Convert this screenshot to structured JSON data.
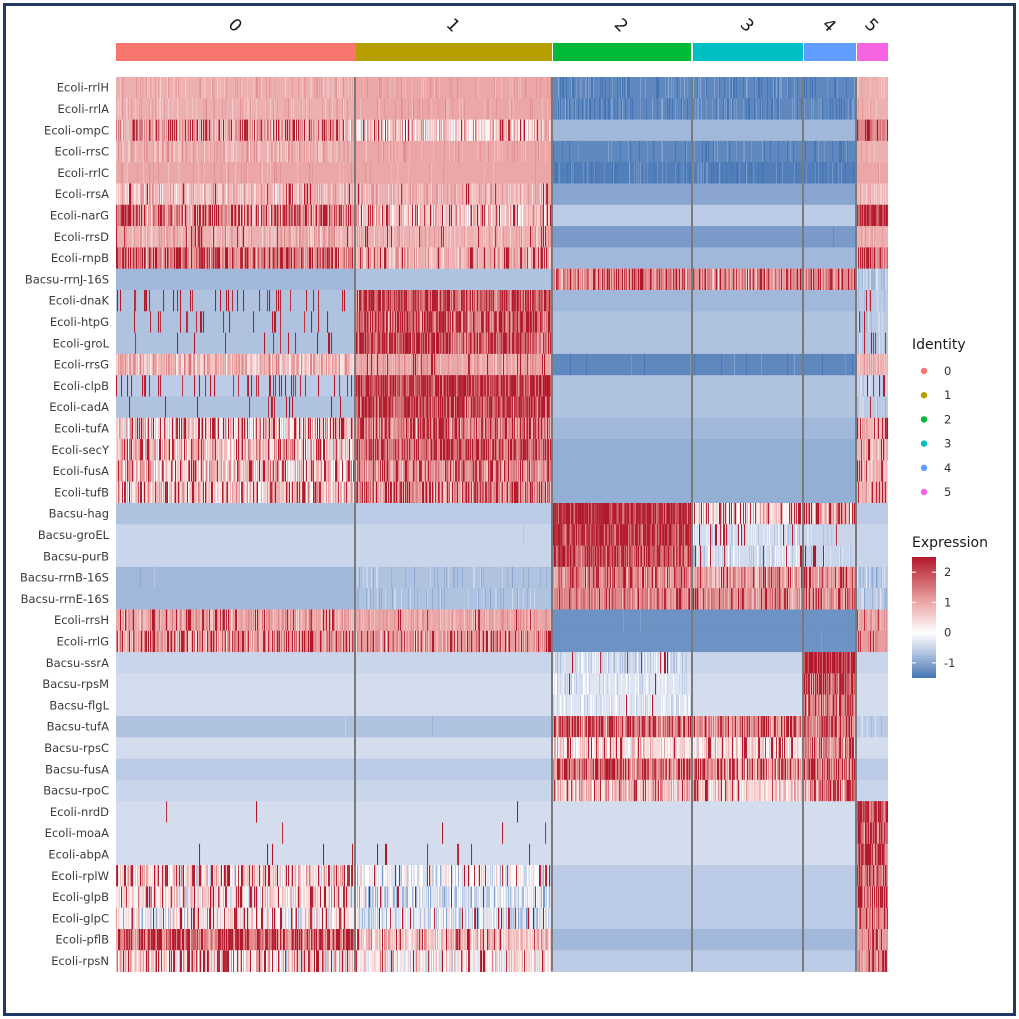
{
  "chart_data": {
    "type": "heatmap",
    "title": "",
    "clusters": [
      {
        "name": "0",
        "color": "#F8766D",
        "from": 116,
        "to": 355
      },
      {
        "name": "1",
        "color": "#B79F00",
        "from": 356,
        "to": 551
      },
      {
        "name": "2",
        "color": "#00BA38",
        "from": 553,
        "to": 690
      },
      {
        "name": "3",
        "color": "#00BFC4",
        "from": 693,
        "to": 802
      },
      {
        "name": "4",
        "color": "#619CFF",
        "from": 804,
        "to": 855
      },
      {
        "name": "5",
        "color": "#F564E3",
        "from": 857,
        "to": 887
      }
    ],
    "genes": [
      {
        "name": "Ecoli-rrlH",
        "base": [
          0.9,
          1.0,
          -1.3,
          -1.3,
          -1.3,
          0.9
        ],
        "noise": [
          0.25,
          0.2,
          0.25,
          0.25,
          0.2,
          0.2
        ],
        "hi": [
          0,
          0,
          0,
          0,
          0,
          0
        ]
      },
      {
        "name": "Ecoli-rrlA",
        "base": [
          0.9,
          1.0,
          -1.3,
          -1.3,
          -1.3,
          0.9
        ],
        "noise": [
          0.25,
          0.2,
          0.25,
          0.25,
          0.2,
          0.2
        ],
        "hi": [
          0,
          0,
          0,
          0,
          0,
          0
        ]
      },
      {
        "name": "Ecoli-ompC",
        "base": [
          1.0,
          0.6,
          -0.8,
          -0.8,
          -0.8,
          1.3
        ],
        "noise": [
          0.7,
          0.9,
          0.05,
          0.05,
          0.05,
          0.3
        ],
        "hi": [
          0.2,
          0.05,
          0,
          0,
          0,
          0.3
        ]
      },
      {
        "name": "Ecoli-rrsC",
        "base": [
          0.9,
          1.0,
          -1.3,
          -1.3,
          -1.3,
          0.9
        ],
        "noise": [
          0.35,
          0.2,
          0.2,
          0.2,
          0.2,
          0.2
        ],
        "hi": [
          0,
          0,
          0,
          0,
          0,
          0
        ]
      },
      {
        "name": "Ecoli-rrlC",
        "base": [
          1.0,
          1.0,
          -1.4,
          -1.4,
          -1.4,
          1.0
        ],
        "noise": [
          0.2,
          0.15,
          0.25,
          0.25,
          0.2,
          0.15
        ],
        "hi": [
          0,
          0,
          0,
          0,
          0,
          0
        ]
      },
      {
        "name": "Ecoli-rrsA",
        "base": [
          0.8,
          0.9,
          -1.0,
          -1.0,
          -1.0,
          0.8
        ],
        "noise": [
          0.5,
          0.4,
          0.1,
          0.1,
          0.1,
          0.3
        ],
        "hi": [
          0.05,
          0.05,
          0,
          0,
          0,
          0
        ]
      },
      {
        "name": "Ecoli-narG",
        "base": [
          1.2,
          0.6,
          -0.6,
          -0.6,
          -0.6,
          1.8
        ],
        "noise": [
          0.7,
          0.7,
          0.05,
          0.05,
          0.05,
          0.3
        ],
        "hi": [
          0.3,
          0.1,
          0,
          0,
          0,
          0.5
        ]
      },
      {
        "name": "Ecoli-rrsD",
        "base": [
          0.9,
          0.9,
          -1.1,
          -1.1,
          -1.1,
          0.9
        ],
        "noise": [
          0.4,
          0.3,
          0.1,
          0.1,
          0.1,
          0.3
        ],
        "hi": [
          0.05,
          0.05,
          0,
          0,
          0,
          0
        ]
      },
      {
        "name": "Ecoli-rnpB",
        "base": [
          1.3,
          0.9,
          -0.8,
          -0.8,
          -0.8,
          1.3
        ],
        "noise": [
          0.6,
          0.5,
          0.05,
          0.05,
          0.05,
          0.4
        ],
        "hi": [
          0.3,
          0.1,
          0,
          0,
          0,
          0.3
        ]
      },
      {
        "name": "Bacsu-rrnJ-16S",
        "base": [
          -0.8,
          -0.7,
          1.3,
          1.2,
          1.3,
          -0.6
        ],
        "noise": [
          0.05,
          0.1,
          0.6,
          0.6,
          0.5,
          0.3
        ],
        "hi": [
          0,
          0,
          0.2,
          0.2,
          0.2,
          0.05
        ]
      },
      {
        "name": "Ecoli-dnaK",
        "base": [
          -0.7,
          1.6,
          -0.8,
          -0.8,
          -0.8,
          -0.6
        ],
        "noise": [
          0.05,
          0.6,
          0.05,
          0.05,
          0.05,
          0.2
        ],
        "hi": [
          0.12,
          0.4,
          0,
          0,
          0,
          0.15
        ]
      },
      {
        "name": "Ecoli-htpG",
        "base": [
          -0.7,
          1.5,
          -0.7,
          -0.7,
          -0.7,
          -0.6
        ],
        "noise": [
          0.05,
          0.6,
          0.05,
          0.05,
          0.05,
          0.2
        ],
        "hi": [
          0.08,
          0.35,
          0,
          0,
          0,
          0.15
        ]
      },
      {
        "name": "Ecoli-groL",
        "base": [
          -0.7,
          1.6,
          -0.7,
          -0.7,
          -0.7,
          -0.6
        ],
        "noise": [
          0.05,
          0.6,
          0.05,
          0.05,
          0.05,
          0.2
        ],
        "hi": [
          0.08,
          0.4,
          0,
          0,
          0,
          0.1
        ]
      },
      {
        "name": "Ecoli-rrsG",
        "base": [
          0.8,
          1.0,
          -1.3,
          -1.3,
          -1.3,
          0.9
        ],
        "noise": [
          0.6,
          0.3,
          0.15,
          0.15,
          0.15,
          0.3
        ],
        "hi": [
          0,
          0.05,
          0,
          0,
          0,
          0
        ]
      },
      {
        "name": "Ecoli-clpB",
        "base": [
          -0.6,
          1.8,
          -0.7,
          -0.7,
          -0.7,
          -0.5
        ],
        "noise": [
          0.05,
          0.5,
          0.05,
          0.05,
          0.05,
          0.2
        ],
        "hi": [
          0.15,
          0.5,
          0,
          0,
          0,
          0.1
        ]
      },
      {
        "name": "Ecoli-cadA",
        "base": [
          -0.7,
          1.7,
          -0.7,
          -0.7,
          -0.7,
          -0.6
        ],
        "noise": [
          0.05,
          0.6,
          0.05,
          0.05,
          0.05,
          0.2
        ],
        "hi": [
          0.05,
          0.45,
          0,
          0,
          0,
          0.1
        ]
      },
      {
        "name": "Ecoli-tufA",
        "base": [
          0.6,
          1.3,
          -0.8,
          -0.8,
          -0.8,
          0.8
        ],
        "noise": [
          0.8,
          0.6,
          0.05,
          0.05,
          0.05,
          0.4
        ],
        "hi": [
          0.2,
          0.3,
          0,
          0,
          0,
          0.2
        ]
      },
      {
        "name": "Ecoli-secY",
        "base": [
          0.8,
          1.5,
          -0.9,
          -0.9,
          -0.9,
          0.8
        ],
        "noise": [
          0.8,
          0.5,
          0.05,
          0.05,
          0.05,
          0.4
        ],
        "hi": [
          0.2,
          0.4,
          0,
          0,
          0,
          0.2
        ]
      },
      {
        "name": "Ecoli-fusA",
        "base": [
          0.7,
          1.2,
          -0.9,
          -0.9,
          -0.9,
          0.8
        ],
        "noise": [
          0.8,
          0.6,
          0.05,
          0.05,
          0.05,
          0.4
        ],
        "hi": [
          0.15,
          0.25,
          0,
          0,
          0,
          0.2
        ]
      },
      {
        "name": "Ecoli-tufB",
        "base": [
          0.7,
          1.2,
          -0.9,
          -0.9,
          -0.9,
          0.8
        ],
        "noise": [
          0.8,
          0.6,
          0.05,
          0.05,
          0.05,
          0.4
        ],
        "hi": [
          0.15,
          0.3,
          0,
          0,
          0,
          0.2
        ]
      },
      {
        "name": "Bacsu-hag",
        "base": [
          -0.7,
          -0.6,
          1.9,
          0.4,
          0.8,
          -0.6
        ],
        "noise": [
          0.05,
          0.1,
          0.4,
          0.8,
          0.8,
          0.1
        ],
        "hi": [
          0,
          0,
          0.6,
          0.2,
          0.3,
          0
        ]
      },
      {
        "name": "Bacsu-groEL",
        "base": [
          -0.5,
          -0.5,
          1.8,
          -0.4,
          -0.5,
          -0.5
        ],
        "noise": [
          0.05,
          0.1,
          0.5,
          0.3,
          0.2,
          0.05
        ],
        "hi": [
          0,
          0,
          0.5,
          0.05,
          0.05,
          0
        ]
      },
      {
        "name": "Bacsu-purB",
        "base": [
          -0.5,
          -0.5,
          1.7,
          -0.4,
          -0.5,
          -0.5
        ],
        "noise": [
          0.05,
          0.05,
          0.5,
          0.3,
          0.2,
          0.05
        ],
        "hi": [
          0,
          0,
          0.45,
          0.05,
          0.05,
          0
        ]
      },
      {
        "name": "Bacsu-rrnB-16S",
        "base": [
          -0.8,
          -0.7,
          1.3,
          1.1,
          1.2,
          -0.6
        ],
        "noise": [
          0.1,
          0.2,
          0.6,
          0.6,
          0.5,
          0.3
        ],
        "hi": [
          0,
          0,
          0.2,
          0.2,
          0.2,
          0
        ]
      },
      {
        "name": "Bacsu-rrnE-16S",
        "base": [
          -0.8,
          -0.7,
          1.3,
          1.2,
          1.3,
          -0.6
        ],
        "noise": [
          0.1,
          0.2,
          0.5,
          0.5,
          0.5,
          0.3
        ],
        "hi": [
          0,
          0,
          0.15,
          0.2,
          0.2,
          0
        ]
      },
      {
        "name": "Ecoli-rrsH",
        "base": [
          1.0,
          1.0,
          -1.2,
          -1.2,
          -1.2,
          1.0
        ],
        "noise": [
          0.5,
          0.3,
          0.1,
          0.1,
          0.1,
          0.3
        ],
        "hi": [
          0.1,
          0.05,
          0,
          0,
          0,
          0.1
        ]
      },
      {
        "name": "Ecoli-rrlG",
        "base": [
          1.1,
          1.1,
          -1.2,
          -1.2,
          -1.2,
          1.1
        ],
        "noise": [
          0.6,
          0.5,
          0.1,
          0.1,
          0.1,
          0.3
        ],
        "hi": [
          0.2,
          0.15,
          0,
          0,
          0,
          0.1
        ]
      },
      {
        "name": "Bacsu-ssrA",
        "base": [
          -0.5,
          -0.5,
          -0.4,
          -0.5,
          1.8,
          -0.5
        ],
        "noise": [
          0.05,
          0.05,
          0.3,
          0.05,
          0.5,
          0.05
        ],
        "hi": [
          0,
          0,
          0.05,
          0,
          0.5,
          0
        ]
      },
      {
        "name": "Bacsu-rpsM",
        "base": [
          -0.4,
          -0.4,
          -0.3,
          -0.4,
          1.5,
          -0.4
        ],
        "noise": [
          0.05,
          0.05,
          0.3,
          0.05,
          0.6,
          0.05
        ],
        "hi": [
          0,
          0,
          0.03,
          0,
          0.4,
          0
        ]
      },
      {
        "name": "Bacsu-flgL",
        "base": [
          -0.4,
          -0.4,
          -0.3,
          -0.4,
          1.3,
          -0.4
        ],
        "noise": [
          0.05,
          0.05,
          0.3,
          0.05,
          0.7,
          0.05
        ],
        "hi": [
          0,
          0,
          0.02,
          0,
          0.3,
          0
        ]
      },
      {
        "name": "Bacsu-tufA",
        "base": [
          -0.7,
          -0.7,
          1.5,
          1.3,
          1.4,
          -0.6
        ],
        "noise": [
          0.1,
          0.1,
          0.7,
          0.7,
          0.6,
          0.2
        ],
        "hi": [
          0,
          0,
          0.3,
          0.25,
          0.3,
          0
        ]
      },
      {
        "name": "Bacsu-rpsC",
        "base": [
          -0.4,
          -0.4,
          0.4,
          0.4,
          1.2,
          -0.4
        ],
        "noise": [
          0.05,
          0.05,
          0.7,
          0.6,
          0.7,
          0.05
        ],
        "hi": [
          0,
          0,
          0.1,
          0.1,
          0.25,
          0
        ]
      },
      {
        "name": "Bacsu-fusA",
        "base": [
          -0.6,
          -0.6,
          1.4,
          1.2,
          1.3,
          -0.6
        ],
        "noise": [
          0.05,
          0.05,
          0.7,
          0.7,
          0.6,
          0.05
        ],
        "hi": [
          0,
          0,
          0.3,
          0.25,
          0.3,
          0
        ]
      },
      {
        "name": "Bacsu-rpoC",
        "base": [
          -0.5,
          -0.5,
          0.8,
          0.5,
          1.2,
          -0.5
        ],
        "noise": [
          0.05,
          0.05,
          0.8,
          0.7,
          0.7,
          0.05
        ],
        "hi": [
          0,
          0,
          0.15,
          0.1,
          0.25,
          0
        ]
      },
      {
        "name": "Ecoli-nrdD",
        "base": [
          -0.4,
          -0.4,
          -0.4,
          -0.4,
          -0.4,
          1.8
        ],
        "noise": [
          0.05,
          0.05,
          0.05,
          0.05,
          0.05,
          0.6
        ],
        "hi": [
          0.01,
          0.02,
          0,
          0,
          0,
          0.5
        ]
      },
      {
        "name": "Ecoli-moaA",
        "base": [
          -0.4,
          -0.4,
          -0.4,
          -0.4,
          -0.4,
          1.6
        ],
        "noise": [
          0.05,
          0.05,
          0.05,
          0.05,
          0.05,
          0.6
        ],
        "hi": [
          0.01,
          0.03,
          0,
          0,
          0,
          0.45
        ]
      },
      {
        "name": "Ecoli-abpA",
        "base": [
          -0.4,
          -0.4,
          -0.4,
          -0.4,
          -0.4,
          1.5
        ],
        "noise": [
          0.05,
          0.05,
          0.05,
          0.05,
          0.05,
          0.6
        ],
        "hi": [
          0.02,
          0.03,
          0,
          0,
          0,
          0.4
        ]
      },
      {
        "name": "Ecoli-rplW",
        "base": [
          0.4,
          0.0,
          -0.6,
          -0.6,
          -0.6,
          1.4
        ],
        "noise": [
          0.9,
          0.7,
          0.05,
          0.05,
          0.05,
          0.5
        ],
        "hi": [
          0.25,
          0.1,
          0,
          0,
          0,
          0.35
        ]
      },
      {
        "name": "Ecoli-glpB",
        "base": [
          0.2,
          -0.3,
          -0.6,
          -0.6,
          -0.6,
          1.4
        ],
        "noise": [
          0.9,
          0.6,
          0.05,
          0.05,
          0.05,
          0.5
        ],
        "hi": [
          0.18,
          0.06,
          0,
          0,
          0,
          0.35
        ]
      },
      {
        "name": "Ecoli-glpC",
        "base": [
          0.2,
          -0.3,
          -0.6,
          -0.6,
          -0.6,
          1.3
        ],
        "noise": [
          0.9,
          0.6,
          0.05,
          0.05,
          0.05,
          0.5
        ],
        "hi": [
          0.15,
          0.05,
          0,
          0,
          0,
          0.3
        ]
      },
      {
        "name": "Ecoli-pflB",
        "base": [
          1.3,
          0.7,
          -0.8,
          -0.8,
          -0.8,
          1.2
        ],
        "noise": [
          0.6,
          0.7,
          0.05,
          0.05,
          0.05,
          0.4
        ],
        "hi": [
          0.35,
          0.1,
          0,
          0,
          0,
          0.25
        ]
      },
      {
        "name": "Ecoli-rpsN",
        "base": [
          0.5,
          0.2,
          -0.6,
          -0.6,
          -0.6,
          1.2
        ],
        "noise": [
          0.9,
          0.8,
          0.05,
          0.05,
          0.05,
          0.5
        ],
        "hi": [
          0.2,
          0.1,
          0,
          0,
          0,
          0.3
        ]
      }
    ],
    "color_scale": {
      "low": "#4575B4",
      "mid": "#FFFFFF",
      "high": "#B2182B",
      "range": [
        -1.5,
        2.5
      ]
    },
    "legend": {
      "identity": {
        "title": "Identity",
        "items": [
          "0",
          "1",
          "2",
          "3",
          "4",
          "5"
        ]
      },
      "expression": {
        "title": "Expression",
        "ticks": [
          "2",
          "1",
          "0",
          "-1"
        ]
      },
      "placement": "right"
    }
  }
}
